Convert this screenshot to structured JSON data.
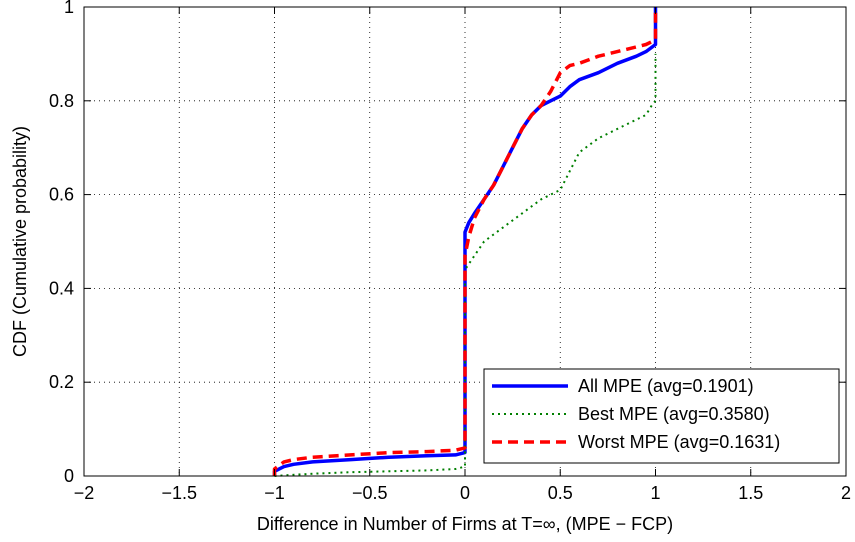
{
  "chart_data": {
    "type": "line",
    "title": "",
    "xlabel": "Difference in Number of Firms at T=∞, (MPE − FCP)",
    "ylabel": "CDF (Cumulative probability)",
    "xlim": [
      -2,
      2
    ],
    "ylim": [
      0,
      1
    ],
    "grid": true,
    "legend_position": "bottom-right",
    "x_ticks": [
      -2,
      -1.5,
      -1,
      -0.5,
      0,
      0.5,
      1,
      1.5,
      2
    ],
    "x_tick_labels": [
      "−2",
      "−1.5",
      "−1",
      "−0.5",
      "0",
      "0.5",
      "1",
      "1.5",
      "2"
    ],
    "y_ticks": [
      0,
      0.2,
      0.4,
      0.6,
      0.8,
      1
    ],
    "y_tick_labels": [
      "0",
      "0.2",
      "0.4",
      "0.6",
      "0.8",
      "1"
    ],
    "series": [
      {
        "name": "All MPE (avg=0.1901)",
        "color": "#0000ff",
        "style": "solid",
        "x": [
          -1,
          -1,
          -0.95,
          -0.9,
          -0.8,
          -0.6,
          -0.4,
          -0.2,
          -0.05,
          0,
          0,
          0,
          0.02,
          0.05,
          0.1,
          0.15,
          0.2,
          0.25,
          0.3,
          0.35,
          0.4,
          0.45,
          0.5,
          0.55,
          0.6,
          0.7,
          0.8,
          0.9,
          0.95,
          1,
          1,
          1
        ],
        "y": [
          0,
          0.01,
          0.02,
          0.025,
          0.03,
          0.035,
          0.04,
          0.043,
          0.045,
          0.05,
          0.4,
          0.52,
          0.54,
          0.56,
          0.59,
          0.62,
          0.66,
          0.7,
          0.74,
          0.77,
          0.79,
          0.8,
          0.81,
          0.83,
          0.845,
          0.86,
          0.88,
          0.895,
          0.905,
          0.92,
          0.95,
          1
        ]
      },
      {
        "name": "Best MPE (avg=0.3580)",
        "color": "#007f00",
        "style": "dotted",
        "x": [
          -1,
          -0.8,
          -0.6,
          -0.4,
          -0.2,
          -0.05,
          0,
          0,
          0,
          0.05,
          0.1,
          0.2,
          0.3,
          0.4,
          0.5,
          0.55,
          0.6,
          0.7,
          0.8,
          0.9,
          0.95,
          0.98,
          1,
          1
        ],
        "y": [
          0,
          0.005,
          0.008,
          0.01,
          0.012,
          0.015,
          0.02,
          0.3,
          0.44,
          0.47,
          0.5,
          0.53,
          0.56,
          0.59,
          0.61,
          0.65,
          0.69,
          0.72,
          0.74,
          0.76,
          0.77,
          0.79,
          0.8,
          0.9
        ]
      },
      {
        "name": "Worst MPE (avg=0.1631)",
        "color": "#ff0000",
        "style": "dashed",
        "x": [
          -1,
          -1,
          -0.95,
          -0.9,
          -0.8,
          -0.6,
          -0.4,
          -0.2,
          -0.05,
          0,
          0,
          0,
          0.02,
          0.05,
          0.1,
          0.15,
          0.2,
          0.25,
          0.3,
          0.35,
          0.4,
          0.45,
          0.5,
          0.55,
          0.6,
          0.7,
          0.8,
          0.9,
          0.95,
          1,
          1,
          1
        ],
        "y": [
          0,
          0.015,
          0.03,
          0.035,
          0.04,
          0.045,
          0.05,
          0.052,
          0.055,
          0.06,
          0.4,
          0.47,
          0.51,
          0.55,
          0.59,
          0.62,
          0.66,
          0.7,
          0.74,
          0.77,
          0.79,
          0.82,
          0.86,
          0.875,
          0.88,
          0.895,
          0.905,
          0.915,
          0.92,
          0.93,
          0.95,
          1
        ]
      }
    ]
  }
}
